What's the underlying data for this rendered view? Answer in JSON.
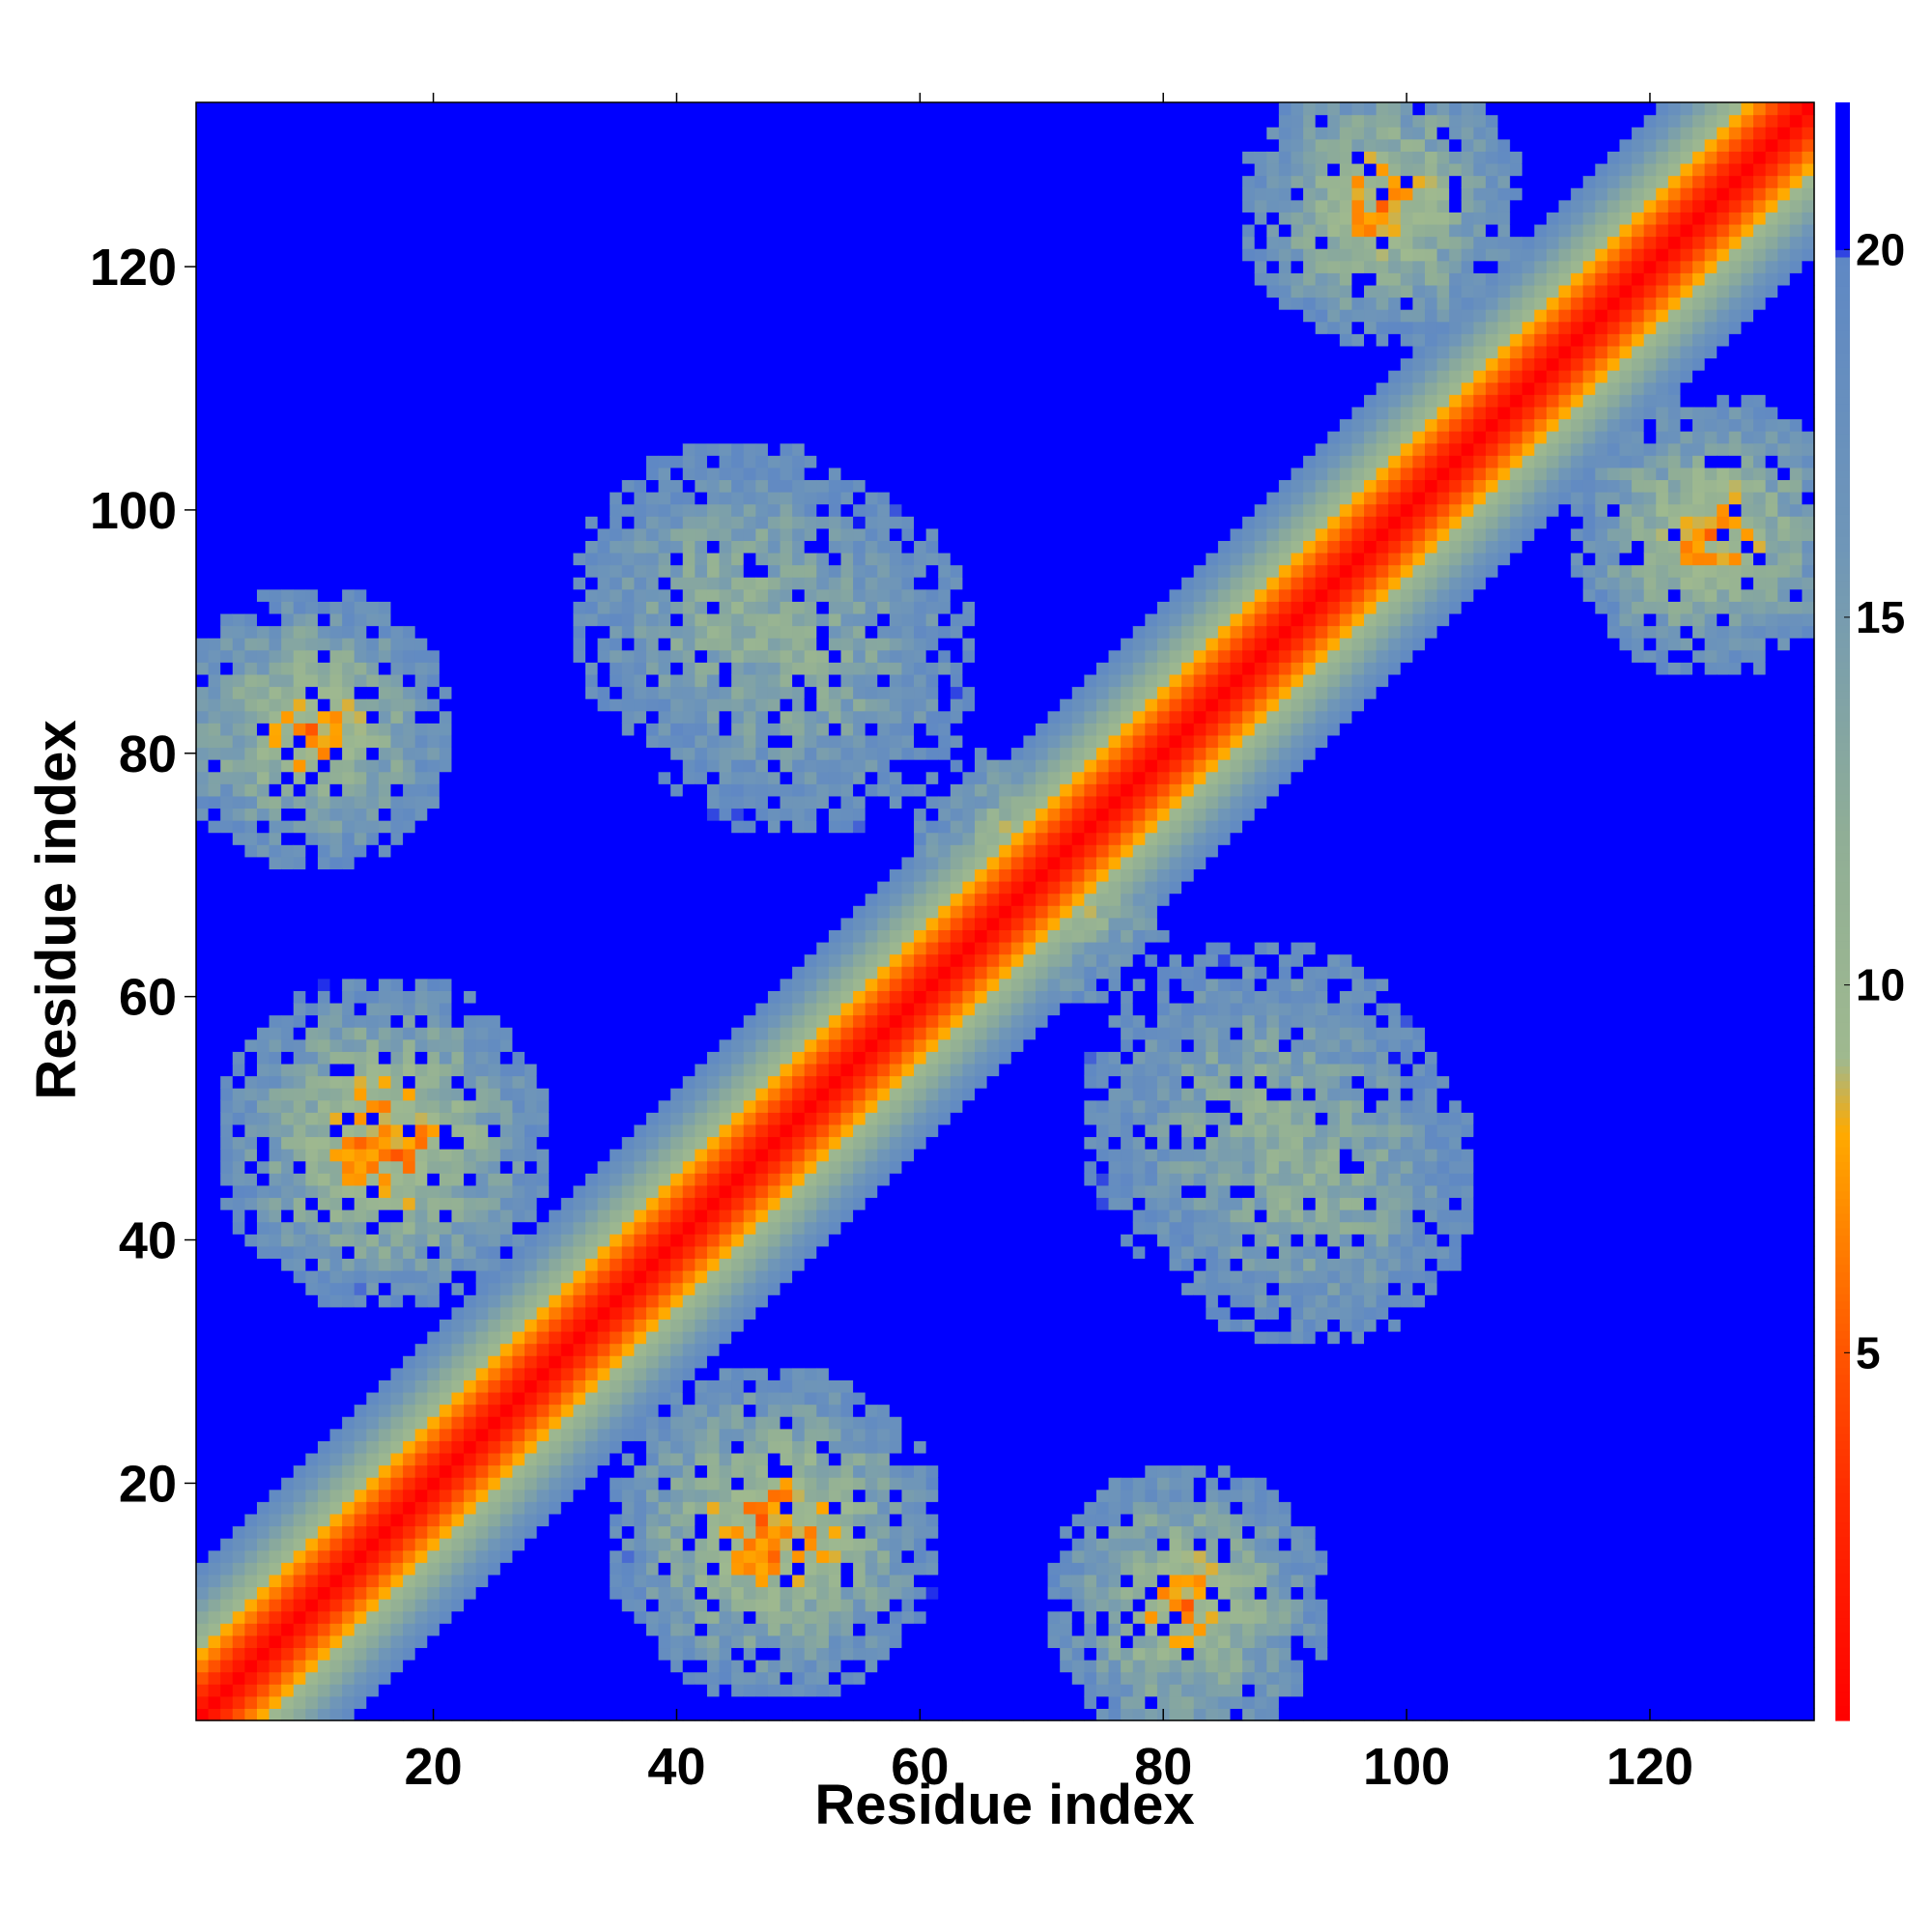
{
  "chart_data": {
    "type": "heatmap",
    "title": "",
    "xlabel": "Residue index",
    "ylabel": "Residue index",
    "xlim": [
      0.5,
      133.5
    ],
    "ylim": [
      0.5,
      133.5
    ],
    "n_residues": 133,
    "xticks": [
      20,
      40,
      60,
      80,
      100,
      120
    ],
    "yticks": [
      20,
      40,
      60,
      80,
      100,
      120
    ],
    "colorbar": {
      "ticks": [
        5,
        10,
        15,
        20
      ],
      "range": [
        0,
        22
      ],
      "stops": [
        {
          "value": 0,
          "color": "#ff0000"
        },
        {
          "value": 3,
          "color": "#ff2a00"
        },
        {
          "value": 5,
          "color": "#ff5500"
        },
        {
          "value": 6.5,
          "color": "#ff7f00"
        },
        {
          "value": 8,
          "color": "#ffaa00"
        },
        {
          "value": 9,
          "color": "#9fb98f"
        },
        {
          "value": 12,
          "color": "#90ae96"
        },
        {
          "value": 16,
          "color": "#6f96b8"
        },
        {
          "value": 19.9,
          "color": "#5f88c4"
        },
        {
          "value": 20,
          "color": "#0000ff"
        },
        {
          "value": 22,
          "color": "#0000ff"
        }
      ]
    },
    "diagonal_band": {
      "value_on_diagonal": 0,
      "slope_per_residue": 1.6,
      "saturation": 21
    },
    "cross_contact_regions": [
      {
        "i_center": 16,
        "j_center": 48,
        "min_value": 6,
        "spread": 14
      },
      {
        "i_center": 48,
        "j_center": 16,
        "min_value": 6,
        "spread": 14
      },
      {
        "i_center": 10,
        "j_center": 82,
        "min_value": 7,
        "spread": 12
      },
      {
        "i_center": 82,
        "j_center": 10,
        "min_value": 7,
        "spread": 12
      },
      {
        "i_center": 45,
        "j_center": 92,
        "min_value": 11,
        "spread": 14
      },
      {
        "i_center": 92,
        "j_center": 45,
        "min_value": 11,
        "spread": 14
      },
      {
        "i_center": 88,
        "j_center": 50,
        "min_value": 12,
        "spread": 15
      },
      {
        "i_center": 50,
        "j_center": 88,
        "min_value": 12,
        "spread": 15
      },
      {
        "i_center": 98,
        "j_center": 125,
        "min_value": 7,
        "spread": 12
      },
      {
        "i_center": 125,
        "j_center": 98,
        "min_value": 7,
        "spread": 12
      },
      {
        "i_center": 72,
        "j_center": 68,
        "min_value": 9,
        "spread": 9
      },
      {
        "i_center": 68,
        "j_center": 72,
        "min_value": 9,
        "spread": 9
      }
    ]
  }
}
